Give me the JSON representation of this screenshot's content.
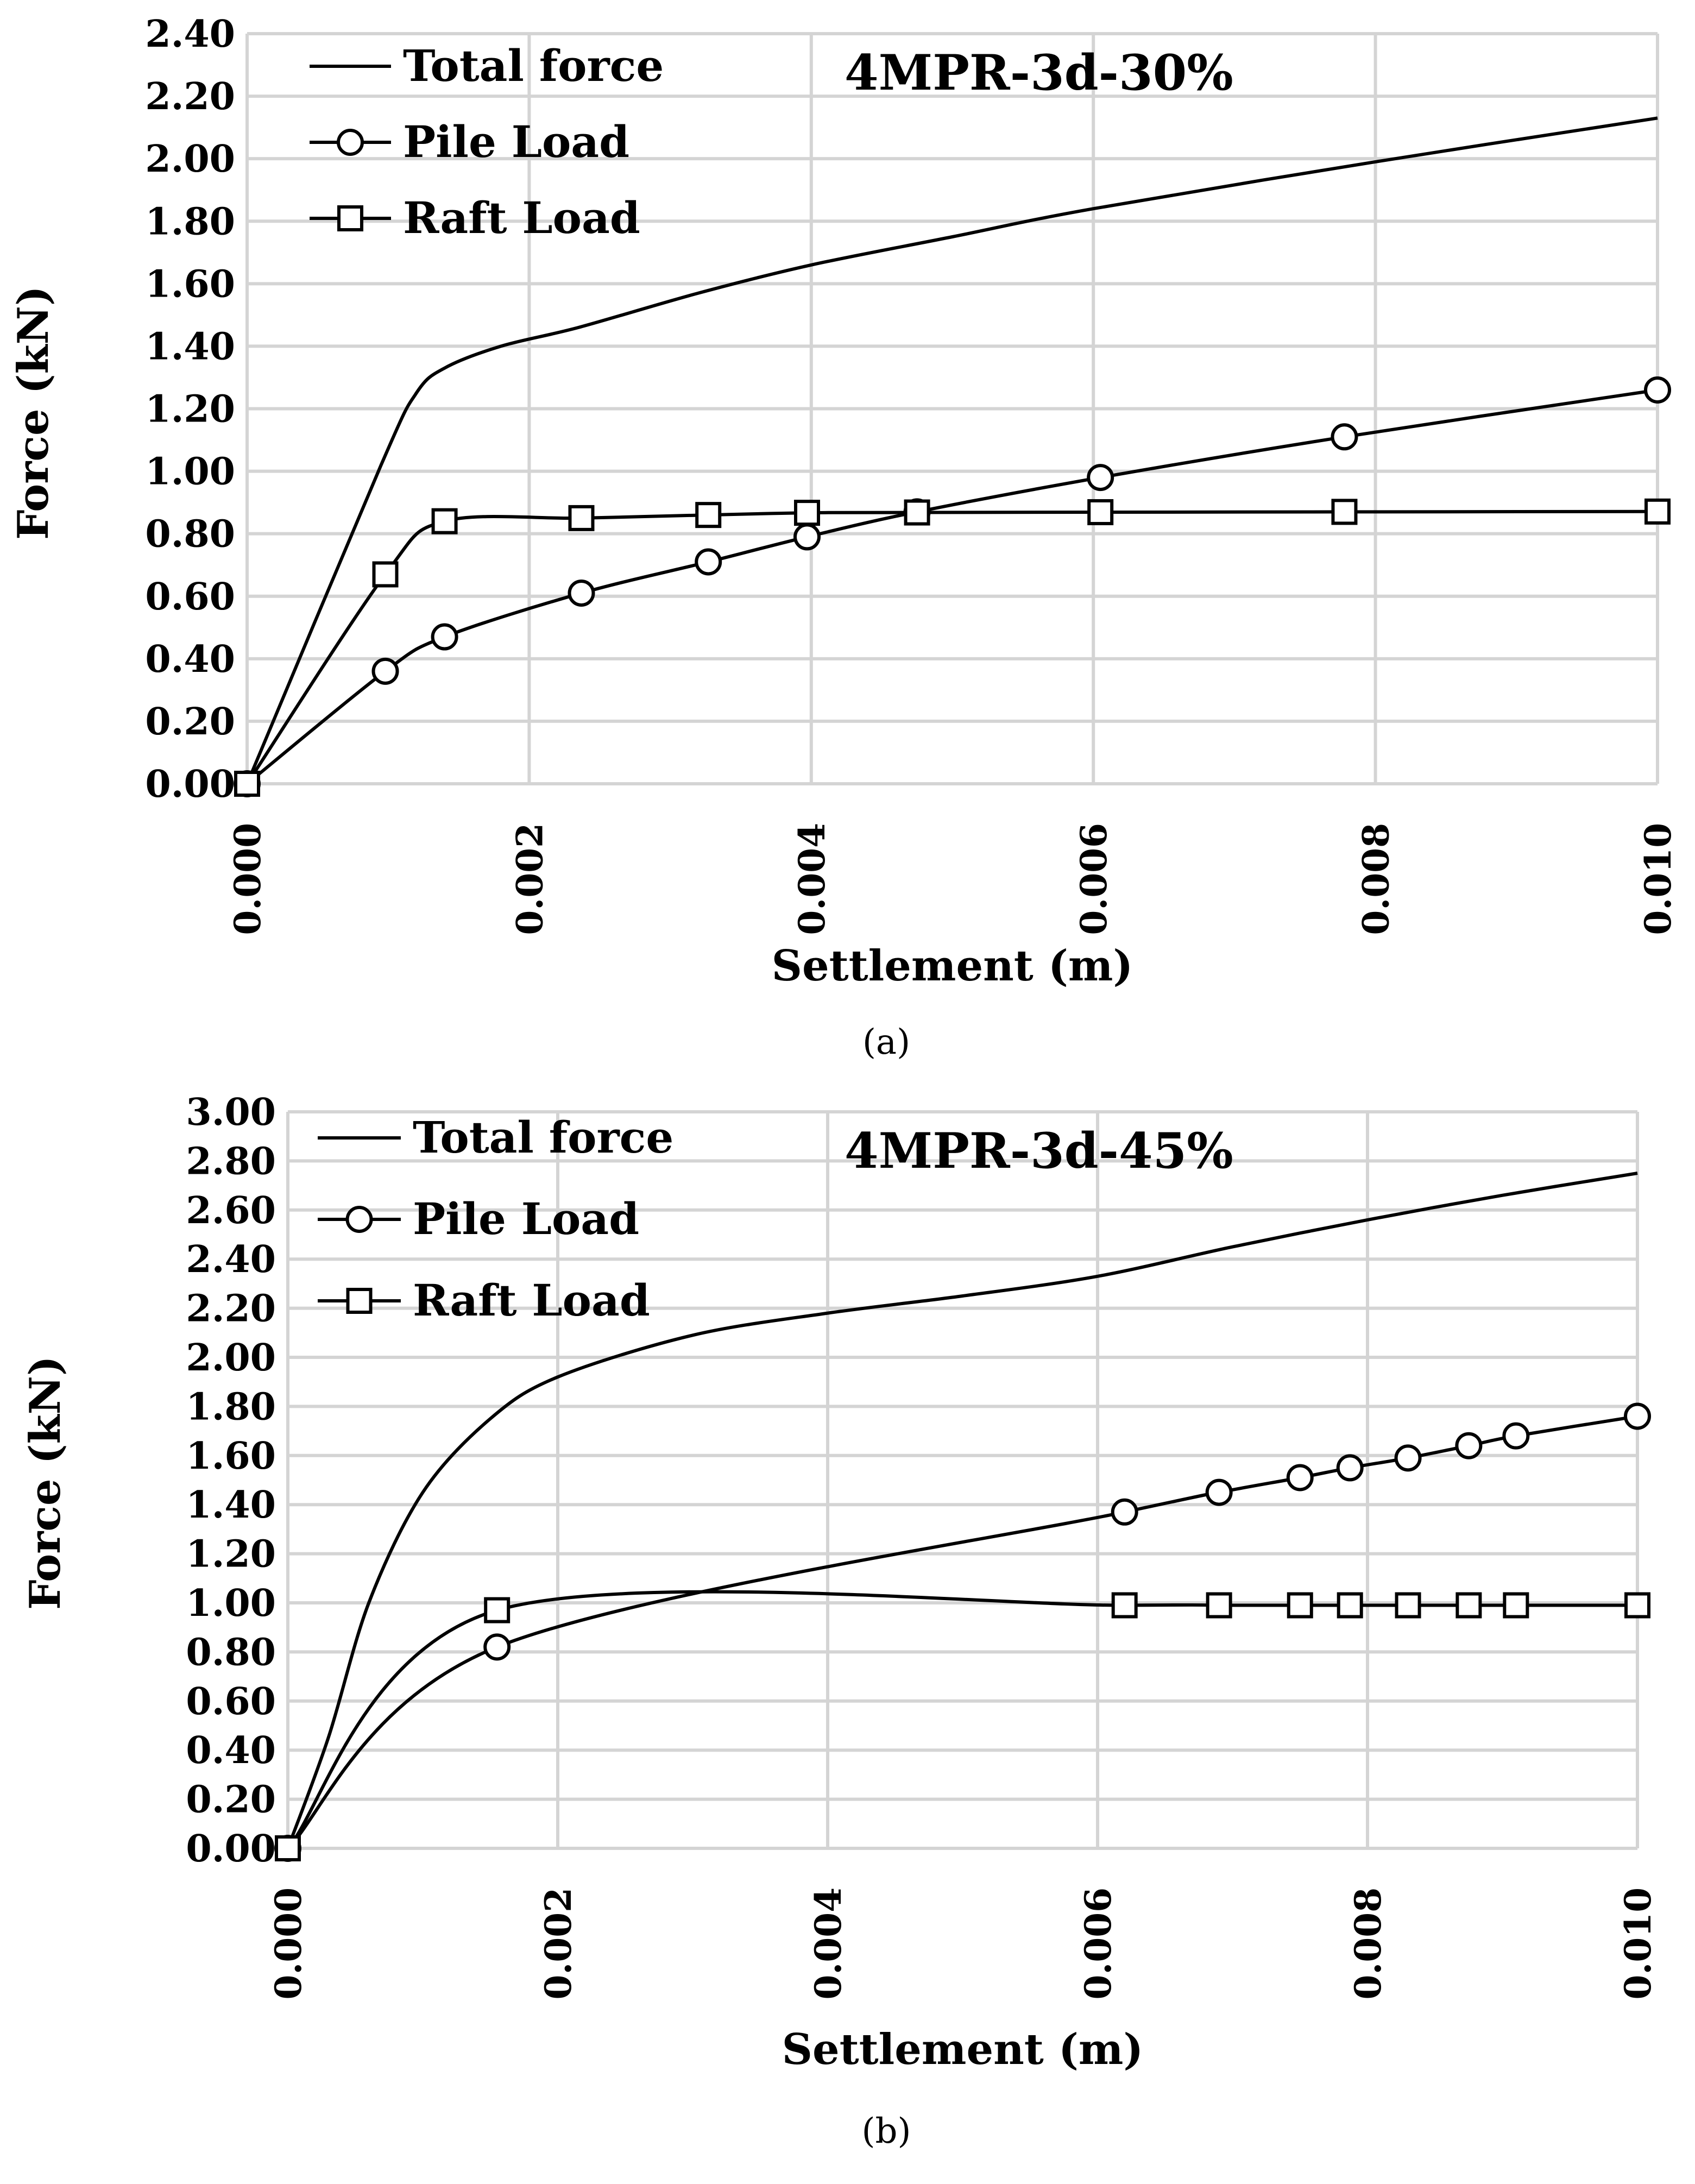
{
  "chart_data": [
    {
      "type": "line",
      "title": "4MPR-3d-30%",
      "caption": "(a)",
      "xlabel": "Settlement (m)",
      "ylabel": "Force (kN)",
      "xlim": [
        0,
        0.01
      ],
      "ylim": [
        0,
        2.4
      ],
      "x_ticks": [
        0,
        0.002,
        0.004,
        0.006,
        0.008,
        0.01
      ],
      "x_tick_labels": [
        "0.000",
        "0.002",
        "0.004",
        "0.006",
        "0.008",
        "0.010"
      ],
      "y_ticks": [
        0,
        0.2,
        0.4,
        0.6,
        0.8,
        1.0,
        1.2,
        1.4,
        1.6,
        1.8,
        2.0,
        2.2,
        2.4
      ],
      "y_tick_labels": [
        "0.00",
        "0.20",
        "0.40",
        "0.60",
        "0.80",
        "1.00",
        "1.20",
        "1.40",
        "1.60",
        "1.80",
        "2.00",
        "2.20",
        "2.40"
      ],
      "grid": true,
      "legend_position": "top-left",
      "series": [
        {
          "name": "Total force",
          "marker": "none",
          "x": [
            0,
            0.00095,
            0.0012,
            0.0014,
            0.0018,
            0.00235,
            0.0032,
            0.004,
            0.005,
            0.006,
            0.008,
            0.01
          ],
          "y": [
            0,
            1.02,
            1.25,
            1.33,
            1.4,
            1.46,
            1.57,
            1.66,
            1.75,
            1.84,
            1.99,
            2.13
          ]
        },
        {
          "name": "Pile Load",
          "marker": "circle",
          "x": [
            0,
            0.00098,
            0.0014,
            0.00237,
            0.00327,
            0.00397,
            0.00475,
            0.00605,
            0.00778,
            0.01
          ],
          "y": [
            0,
            0.36,
            0.47,
            0.61,
            0.71,
            0.79,
            0.87,
            0.98,
            1.11,
            1.26
          ]
        },
        {
          "name": "Raft Load",
          "marker": "square",
          "x": [
            0,
            0.00098,
            0.0014,
            0.00237,
            0.00327,
            0.00397,
            0.00475,
            0.00605,
            0.00778,
            0.01
          ],
          "y": [
            0,
            0.67,
            0.84,
            0.85,
            0.86,
            0.867,
            0.868,
            0.869,
            0.87,
            0.871
          ]
        }
      ]
    },
    {
      "type": "line",
      "title": "4MPR-3d-45%",
      "caption": "(b)",
      "xlabel": "Settlement (m)",
      "ylabel": "Force (kN)",
      "xlim": [
        0,
        0.01
      ],
      "ylim": [
        0,
        3.0
      ],
      "x_ticks": [
        0,
        0.002,
        0.004,
        0.006,
        0.008,
        0.01
      ],
      "x_tick_labels": [
        "0.000",
        "0.002",
        "0.004",
        "0.006",
        "0.008",
        "0.010"
      ],
      "y_ticks": [
        0,
        0.2,
        0.4,
        0.6,
        0.8,
        1.0,
        1.2,
        1.4,
        1.6,
        1.8,
        2.0,
        2.2,
        2.4,
        2.6,
        2.8,
        3.0
      ],
      "y_tick_labels": [
        "0.00",
        "0.20",
        "0.40",
        "0.60",
        "0.80",
        "1.00",
        "1.20",
        "1.40",
        "1.60",
        "1.80",
        "2.00",
        "2.20",
        "2.40",
        "2.60",
        "2.80",
        "3.00"
      ],
      "grid": true,
      "legend_position": "top-left",
      "series": [
        {
          "name": "Total force",
          "marker": "none",
          "x": [
            0,
            0.0003,
            0.0006,
            0.001,
            0.0015,
            0.002,
            0.003,
            0.004,
            0.005,
            0.006,
            0.007,
            0.008,
            0.009,
            0.01
          ],
          "y": [
            0,
            0.45,
            1.0,
            1.45,
            1.75,
            1.92,
            2.09,
            2.18,
            2.25,
            2.33,
            2.45,
            2.56,
            2.66,
            2.75
          ]
        },
        {
          "name": "Pile Load",
          "marker": "circle",
          "x": [
            0,
            0.00155,
            0.0062,
            0.0069,
            0.0075,
            0.00787,
            0.0083,
            0.00875,
            0.0091,
            0.01
          ],
          "y": [
            0,
            0.82,
            1.37,
            1.45,
            1.51,
            1.55,
            1.59,
            1.64,
            1.68,
            1.76
          ]
        },
        {
          "name": "Raft Load",
          "marker": "square",
          "x": [
            0,
            0.00155,
            0.0062,
            0.0069,
            0.0075,
            0.00787,
            0.0083,
            0.00875,
            0.0091,
            0.01
          ],
          "y": [
            0,
            0.97,
            0.99,
            0.99,
            0.99,
            0.99,
            0.99,
            0.99,
            0.99,
            0.99
          ]
        }
      ]
    }
  ]
}
